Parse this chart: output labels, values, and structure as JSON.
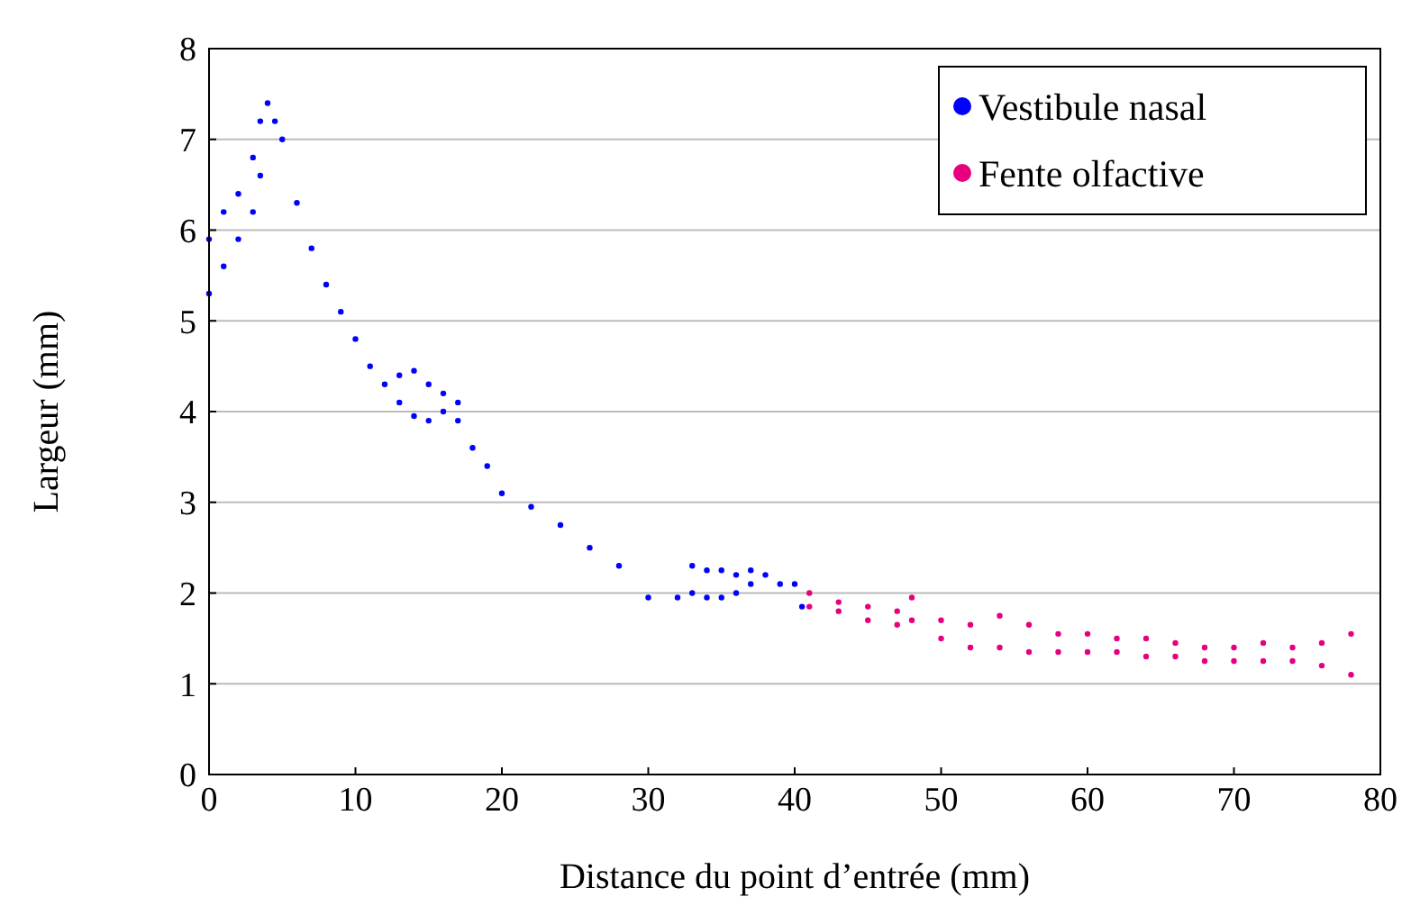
{
  "chart_data": {
    "type": "scatter",
    "xlabel": "Distance du point d’entrée (mm)",
    "ylabel": "Largeur (mm)",
    "xlim": [
      0,
      80
    ],
    "ylim": [
      0,
      8
    ],
    "xticks": [
      0,
      10,
      20,
      30,
      40,
      50,
      60,
      70,
      80
    ],
    "yticks": [
      0,
      1,
      2,
      3,
      4,
      5,
      6,
      7,
      8
    ],
    "grid": "y",
    "legend": "top right",
    "marker": "circle",
    "series": [
      {
        "name": "Vestibule nasal",
        "color": "#0000ff",
        "x": [
          0,
          1,
          2,
          3,
          3.5,
          4,
          4.5,
          5,
          6,
          7,
          8,
          9,
          10,
          11,
          12,
          13,
          14,
          15,
          16,
          17,
          18,
          19,
          20,
          22,
          24,
          26,
          28,
          30,
          32,
          33,
          34,
          35,
          36,
          37,
          38,
          39,
          40,
          40.5,
          0,
          1,
          2,
          3,
          3.5,
          13,
          14,
          15,
          16,
          17,
          33,
          34,
          35,
          36,
          37
        ],
        "values": [
          5.9,
          6.2,
          6.4,
          6.8,
          7.2,
          7.4,
          7.2,
          7.0,
          6.3,
          5.8,
          5.4,
          5.1,
          4.8,
          4.5,
          4.3,
          4.4,
          4.45,
          4.3,
          4.2,
          4.1,
          3.6,
          3.4,
          3.1,
          2.95,
          2.75,
          2.5,
          2.3,
          1.95,
          1.95,
          2.3,
          2.25,
          2.25,
          2.2,
          2.25,
          2.2,
          2.1,
          2.1,
          1.85,
          5.3,
          5.6,
          5.9,
          6.2,
          6.6,
          4.1,
          3.95,
          3.9,
          4.0,
          3.9,
          2.0,
          1.95,
          1.95,
          2.0,
          2.1
        ]
      },
      {
        "name": "Fente olfactive",
        "color": "#e6007e",
        "x": [
          41,
          43,
          45,
          47,
          48,
          50,
          52,
          54,
          56,
          58,
          60,
          62,
          64,
          66,
          68,
          70,
          72,
          74,
          76,
          78,
          41,
          43,
          45,
          47,
          48,
          50,
          52,
          54,
          56,
          58,
          60,
          62,
          64,
          66,
          68,
          70,
          72,
          74,
          76,
          78
        ],
        "values": [
          2.0,
          1.9,
          1.85,
          1.8,
          1.95,
          1.7,
          1.65,
          1.75,
          1.65,
          1.55,
          1.55,
          1.5,
          1.5,
          1.45,
          1.4,
          1.4,
          1.45,
          1.4,
          1.45,
          1.55,
          1.85,
          1.8,
          1.7,
          1.65,
          1.7,
          1.5,
          1.4,
          1.4,
          1.35,
          1.35,
          1.35,
          1.35,
          1.3,
          1.3,
          1.25,
          1.25,
          1.25,
          1.25,
          1.2,
          1.1
        ]
      }
    ]
  }
}
